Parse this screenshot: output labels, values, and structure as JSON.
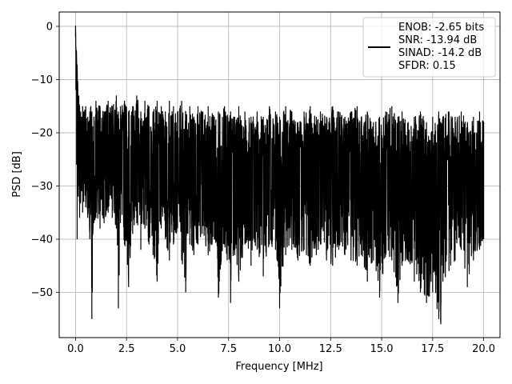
{
  "chart_data": {
    "type": "line",
    "xlabel": "Frequency [MHz]",
    "ylabel": "PSD [dB]",
    "xlim": [
      -0.8,
      20.8
    ],
    "ylim": [
      -58.5,
      2.7
    ],
    "xticks": [
      0.0,
      2.5,
      5.0,
      7.5,
      10.0,
      12.5,
      15.0,
      17.5,
      20.0
    ],
    "xtick_labels": [
      "0.0",
      "2.5",
      "5.0",
      "7.5",
      "10.0",
      "12.5",
      "15.0",
      "17.5",
      "20.0"
    ],
    "yticks": [
      0,
      -10,
      -20,
      -30,
      -40,
      -50
    ],
    "ytick_labels": [
      "0",
      "−10",
      "−20",
      "−30",
      "−40",
      "−50"
    ],
    "grid": true,
    "legend_position": "top-right",
    "series_color": "#000000",
    "legend": {
      "lines": [
        "ENOB: -2.65 bits",
        "SNR: -13.94 dB",
        "SINAD: -14.2 dB",
        "SFDR: 0.15"
      ]
    },
    "series": [
      {
        "x": [
          0.0,
          0.02,
          0.05,
          0.08,
          0.1,
          0.13,
          0.16,
          0.2,
          0.25,
          0.3,
          0.35,
          0.4,
          0.5,
          0.6,
          0.7,
          0.75,
          0.8,
          0.9,
          1.0,
          1.2,
          1.4,
          1.6,
          1.8,
          2.0,
          2.1,
          2.2,
          2.4,
          2.6,
          2.8,
          3.0,
          3.2,
          3.4,
          3.6,
          3.8,
          4.0,
          4.2,
          4.4,
          4.6,
          4.8,
          5.0,
          5.2,
          5.4,
          5.6,
          5.8,
          6.0,
          6.2,
          6.5,
          6.8,
          7.0,
          7.3,
          7.6,
          7.8,
          8.0,
          8.3,
          8.6,
          8.9,
          9.2,
          9.5,
          9.8,
          10.0,
          10.3,
          10.6,
          10.9,
          11.2,
          11.5,
          11.8,
          12.0,
          12.3,
          12.6,
          12.9,
          13.2,
          13.5,
          13.8,
          14.0,
          14.3,
          14.6,
          14.9,
          15.2,
          15.5,
          15.8,
          16.0,
          16.3,
          16.6,
          16.9,
          17.2,
          17.5,
          17.8,
          17.9,
          18.0,
          18.3,
          18.6,
          18.9,
          19.2,
          19.5,
          19.8,
          20.0
        ],
        "upper": [
          0,
          -4,
          -6,
          -9,
          -11,
          -14,
          -13,
          -15,
          -16,
          -17,
          -15,
          -16,
          -15,
          -17,
          -16,
          -15,
          -16,
          -17,
          -14,
          -15,
          -16,
          -14,
          -15,
          -13,
          -16,
          -15,
          -14,
          -16,
          -15,
          -13,
          -16,
          -14,
          -15,
          -16,
          -14,
          -15,
          -16,
          -14,
          -15,
          -16,
          -14,
          -16,
          -15,
          -17,
          -15,
          -16,
          -15,
          -17,
          -16,
          -15,
          -16,
          -17,
          -15,
          -16,
          -17,
          -16,
          -17,
          -15,
          -16,
          -17,
          -15,
          -16,
          -18,
          -16,
          -15,
          -17,
          -16,
          -17,
          -15,
          -16,
          -17,
          -16,
          -15,
          -17,
          -16,
          -18,
          -17,
          -16,
          -15,
          -17,
          -16,
          -18,
          -17,
          -16,
          -18,
          -17,
          -16,
          -18,
          -17,
          -16,
          -17,
          -16,
          -18,
          -17,
          -16,
          -18
        ],
        "lower": [
          -2,
          -12,
          -26,
          -40,
          -24,
          -32,
          -30,
          -36,
          -33,
          -31,
          -35,
          -33,
          -34,
          -36,
          -40,
          -33,
          -55,
          -37,
          -36,
          -38,
          -37,
          -35,
          -36,
          -38,
          -53,
          -37,
          -41,
          -49,
          -39,
          -37,
          -42,
          -38,
          -41,
          -43,
          -48,
          -38,
          -40,
          -44,
          -41,
          -38,
          -44,
          -50,
          -41,
          -43,
          -41,
          -39,
          -43,
          -40,
          -51,
          -41,
          -52,
          -43,
          -48,
          -41,
          -45,
          -42,
          -47,
          -41,
          -42,
          -53,
          -43,
          -42,
          -44,
          -42,
          -45,
          -43,
          -41,
          -44,
          -45,
          -42,
          -43,
          -44,
          -45,
          -43,
          -48,
          -44,
          -51,
          -43,
          -44,
          -52,
          -45,
          -44,
          -48,
          -50,
          -52,
          -50,
          -55,
          -56,
          -48,
          -46,
          -44,
          -42,
          -49,
          -44,
          -42,
          -40
        ]
      }
    ]
  }
}
